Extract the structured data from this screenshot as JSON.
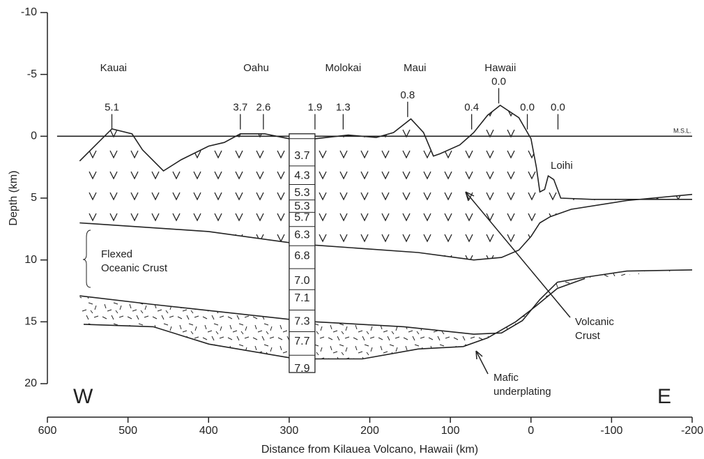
{
  "chart_data": {
    "type": "cross-section",
    "x_label": "Distance from Kilauea Volcano, Hawaii (km)",
    "y_label": "Depth (km)",
    "xlim": [
      600,
      -200
    ],
    "xticks": [
      600,
      500,
      400,
      300,
      200,
      100,
      0,
      -100,
      -200
    ],
    "ylim": [
      -10,
      20
    ],
    "y_inverted": true,
    "yticks": [
      -10,
      -5,
      0,
      5,
      10,
      15,
      20
    ],
    "lines": [
      {
        "x": [
          560,
          520,
          495,
          482,
          456,
          434,
          400,
          380.5,
          360.6,
          330.3,
          300,
          268,
          226.6,
          192,
          170.5,
          149,
          133.3,
          121,
          112.5,
          88.3,
          71,
          53.8,
          38.2,
          15,
          0,
          -6.7,
          -11,
          -17,
          -21.4,
          -28.3,
          -37,
          -75.9,
          -200
        ],
        "y": [
          2.0,
          -0.6,
          -0.2,
          1.1,
          2.8,
          1.9,
          0.8,
          0.5,
          -0.2,
          -0.2,
          0.2,
          0.2,
          -0.1,
          0.1,
          -0.3,
          -1.4,
          -0.3,
          1.6,
          1.4,
          0.7,
          -0.3,
          -1.7,
          -2.5,
          -1.5,
          0.2,
          2.5,
          4.5,
          4.3,
          3.2,
          3.5,
          5.0,
          5.1,
          5.1
        ]
      },
      {
        "x": [
          560,
          400,
          300,
          268,
          140,
          71,
          36.5,
          15,
          0,
          -11,
          -24,
          -50,
          -119,
          -200
        ],
        "y": [
          7.0,
          7.7,
          8.6,
          8.8,
          9.4,
          10.0,
          9.8,
          9.2,
          8.1,
          7.0,
          6.5,
          5.9,
          5.2,
          4.7
        ]
      },
      {
        "x": [
          560,
          468.6,
          300,
          268,
          157.5,
          71,
          36.5,
          10.6,
          -11,
          -32.7,
          -67,
          -119,
          -200
        ],
        "y": [
          12.9,
          13.6,
          14.8,
          15.0,
          15.4,
          16.0,
          15.9,
          14.9,
          13.2,
          11.8,
          11.4,
          10.9,
          10.8
        ]
      },
      {
        "x": [
          555,
          468.6,
          399.5,
          300,
          268,
          209,
          140,
          84,
          53.8,
          19,
          -6.7,
          -32.7,
          -67
        ],
        "y": [
          15.2,
          15.4,
          16.8,
          17.9,
          18.0,
          18.0,
          17.2,
          17.0,
          16.3,
          15.0,
          13.7,
          12.3,
          11.5
        ]
      },
      {
        "x": [
          588,
          -200
        ],
        "y": [
          0,
          0
        ]
      }
    ],
    "islands": [
      {
        "name": "Kauai",
        "x": 518
      },
      {
        "name": "Oahu",
        "x": 341
      },
      {
        "name": "Molokai",
        "x": 233
      },
      {
        "name": "Maui",
        "x": 144
      },
      {
        "name": "Hawaii",
        "x": 38
      }
    ],
    "ages": [
      {
        "label": "5.1",
        "x": 520,
        "y": -2.3
      },
      {
        "label": "3.7",
        "x": 360.6,
        "y": -2.3
      },
      {
        "label": "2.6",
        "x": 332,
        "y": -2.3
      },
      {
        "label": "1.9",
        "x": 268,
        "y": -2.3
      },
      {
        "label": "1.3",
        "x": 233,
        "y": -2.3
      },
      {
        "label": "0.8",
        "x": 153,
        "y": -3.3
      },
      {
        "label": "0.4",
        "x": 73.6,
        "y": -2.3
      },
      {
        "label": "0.0",
        "x": 40,
        "y": -4.4
      },
      {
        "label": "0.0",
        "x": 4.5,
        "y": -2.3
      },
      {
        "label": "0.0",
        "x": -33.5,
        "y": -2.3
      }
    ],
    "column": {
      "x": [
        300,
        268
      ],
      "top": -0.2,
      "bottom": 19.1,
      "values": [
        {
          "label": "3.7",
          "y": 1.6
        },
        {
          "label": "4.3",
          "y": 3.2
        },
        {
          "label": "5.3",
          "y": 4.6
        },
        {
          "label": "5.3",
          "y": 5.7
        },
        {
          "label": "5.7",
          "y": 6.6
        },
        {
          "label": "6.3",
          "y": 8.0
        },
        {
          "label": "6.8",
          "y": 9.7
        },
        {
          "label": "7.0",
          "y": 11.7
        },
        {
          "label": "7.1",
          "y": 13.1
        },
        {
          "label": "7.3",
          "y": 15.0
        },
        {
          "label": "7.7",
          "y": 16.6
        },
        {
          "label": "7.9",
          "y": 18.8
        }
      ]
    },
    "texts": {
      "loihi": "Loihi",
      "msl": "M.S.L.",
      "flexed": [
        "Flexed",
        "Oceanic Crust"
      ],
      "volcanic": [
        "Volcanic",
        "Crust"
      ],
      "mafic": [
        "Mafic",
        "underplating"
      ],
      "west": "W",
      "east": "E"
    }
  }
}
